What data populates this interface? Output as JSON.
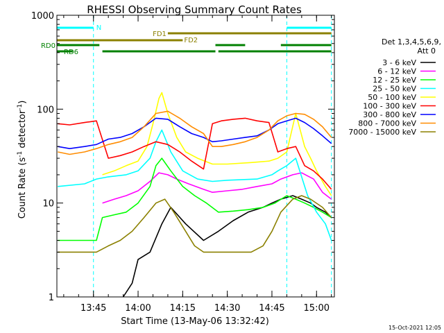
{
  "chart_data": {
    "type": "line",
    "title": "RHESSI Observing Summary Count Rates",
    "xlabel": "Start Time (13-May-06 13:32:42)",
    "ylabel_main": "Count Rate (s",
    "ylabel_sup1": "-1",
    "ylabel_mid": " detector",
    "ylabel_sup2": "-1",
    "ylabel_end": ")",
    "y_scale": "log",
    "xlim": [
      "13:32:42",
      "15:06:00"
    ],
    "ylim": [
      1,
      1000
    ],
    "x_ticks": [
      {
        "label": "13:45",
        "t": "13:45"
      },
      {
        "label": "14:00",
        "t": "14:00"
      },
      {
        "label": "14:15",
        "t": "14:15"
      },
      {
        "label": "14:30",
        "t": "14:30"
      },
      {
        "label": "14:45",
        "t": "14:45"
      },
      {
        "label": "15:00",
        "t": "15:00"
      }
    ],
    "y_ticks": [
      {
        "label": "1",
        "value": 1
      },
      {
        "label": "10",
        "value": 10
      },
      {
        "label": "100",
        "value": 100
      },
      {
        "label": "1000",
        "value": 1000
      }
    ],
    "legend": {
      "position": "right",
      "header1": "Det 1,3,4,5,6,9,",
      "header2": "Att 0"
    },
    "series": [
      {
        "name": "3 - 6 keV",
        "color": "#000000",
        "x": [
          "13:33",
          "13:45",
          "13:55",
          "13:58",
          "14:00",
          "14:04",
          "14:08",
          "14:11",
          "14:16",
          "14:22",
          "14:27",
          "14:32",
          "14:37",
          "14:42",
          "14:45",
          "14:48",
          "14:52",
          "14:55",
          "14:58",
          "15:00",
          "15:03",
          "15:05"
        ],
        "values": [
          null,
          null,
          1,
          1.4,
          2.5,
          3,
          6,
          9,
          6,
          4,
          5,
          6.5,
          8,
          9,
          10,
          11,
          12,
          11,
          10,
          9,
          8,
          7
        ]
      },
      {
        "name": "6 - 12 keV",
        "color": "#ff00ff",
        "x": [
          "13:33",
          "13:42",
          "13:48",
          "13:52",
          "13:56",
          "14:00",
          "14:04",
          "14:07",
          "14:10",
          "14:13",
          "14:17",
          "14:22",
          "14:25",
          "14:30",
          "14:35",
          "14:40",
          "14:45",
          "14:48",
          "14:52",
          "14:55",
          "14:59",
          "15:02",
          "15:05"
        ],
        "values": [
          null,
          null,
          10,
          11,
          12,
          13.5,
          17,
          21,
          20,
          18,
          16,
          14,
          13,
          13.5,
          14,
          15,
          16,
          18,
          20,
          21,
          18,
          13,
          11
        ]
      },
      {
        "name": "12 - 25 keV",
        "color": "#00ff00",
        "x": [
          "13:33",
          "13:37",
          "13:42",
          "13:46",
          "13:48",
          "13:52",
          "13:56",
          "14:00",
          "14:04",
          "14:06",
          "14:08",
          "14:11",
          "14:15",
          "14:19",
          "14:23",
          "14:27",
          "14:32",
          "14:37",
          "14:42",
          "14:46",
          "14:50",
          "14:53",
          "14:56",
          "14:59",
          "15:02",
          "15:05"
        ],
        "values": [
          4,
          4,
          4,
          4,
          7,
          7.5,
          8,
          10,
          15,
          25,
          30,
          22,
          15,
          12,
          10,
          8,
          8.2,
          8.5,
          9,
          10,
          12,
          11,
          10,
          9,
          8,
          7
        ]
      },
      {
        "name": "25 - 50 keV",
        "color": "#00ffff",
        "x": [
          "13:33",
          "13:42",
          "13:46",
          "13:50",
          "13:56",
          "14:00",
          "14:04",
          "14:06",
          "14:08",
          "14:11",
          "14:15",
          "14:20",
          "14:25",
          "14:30",
          "14:40",
          "14:45",
          "14:47",
          "14:50",
          "14:53",
          "14:57",
          "15:00",
          "15:03",
          "15:05"
        ],
        "values": [
          15,
          16,
          18,
          19,
          20,
          22,
          30,
          45,
          60,
          35,
          22,
          18,
          17,
          17.5,
          18,
          20,
          22,
          25,
          30,
          12,
          8,
          6,
          4
        ]
      },
      {
        "name": "50 - 100 keV",
        "color": "#ffff00",
        "x": [
          "13:33",
          "13:42",
          "13:48",
          "13:52",
          "13:56",
          "14:00",
          "14:03",
          "14:05",
          "14:07",
          "14:08",
          "14:10",
          "14:13",
          "14:16",
          "14:20",
          "14:25",
          "14:30",
          "14:38",
          "14:44",
          "14:47",
          "14:50",
          "14:53",
          "14:56",
          "14:58",
          "15:00",
          "15:03",
          "15:05"
        ],
        "values": [
          null,
          null,
          20,
          22,
          25,
          28,
          40,
          70,
          130,
          150,
          90,
          50,
          35,
          30,
          26,
          26,
          27,
          28,
          30,
          35,
          90,
          40,
          30,
          22,
          15,
          12
        ]
      },
      {
        "name": "100 - 300 keV",
        "color": "#ff0000",
        "x": [
          "13:33",
          "13:37",
          "13:42",
          "13:46",
          "13:50",
          "13:54",
          "13:58",
          "14:02",
          "14:06",
          "14:10",
          "14:14",
          "14:18",
          "14:22",
          "14:25",
          "14:28",
          "14:32",
          "14:36",
          "14:40",
          "14:44",
          "14:47",
          "14:50",
          "14:53",
          "14:56",
          "14:59",
          "15:02",
          "15:05"
        ],
        "values": [
          70,
          68,
          72,
          75,
          30,
          32,
          35,
          40,
          45,
          42,
          35,
          28,
          23,
          70,
          75,
          78,
          80,
          75,
          72,
          35,
          38,
          40,
          25,
          22,
          18,
          14
        ]
      },
      {
        "name": "300 - 800 keV",
        "color": "#0000ff",
        "x": [
          "13:33",
          "13:37",
          "13:42",
          "13:46",
          "13:50",
          "13:54",
          "13:58",
          "14:02",
          "14:06",
          "14:10",
          "14:14",
          "14:18",
          "14:22",
          "14:25",
          "14:28",
          "14:32",
          "14:36",
          "14:40",
          "14:44",
          "14:47",
          "14:50",
          "14:53",
          "14:56",
          "14:59",
          "15:02",
          "15:05"
        ],
        "values": [
          40,
          38,
          40,
          42,
          48,
          50,
          55,
          65,
          80,
          78,
          65,
          55,
          50,
          45,
          46,
          48,
          50,
          52,
          60,
          70,
          75,
          80,
          72,
          62,
          52,
          43
        ]
      },
      {
        "name": "800 - 7000 keV",
        "color": "#ff8c00",
        "x": [
          "13:33",
          "13:37",
          "13:42",
          "13:46",
          "13:50",
          "13:54",
          "13:58",
          "14:02",
          "14:06",
          "14:10",
          "14:14",
          "14:18",
          "14:22",
          "14:25",
          "14:28",
          "14:32",
          "14:36",
          "14:40",
          "14:44",
          "14:47",
          "14:50",
          "14:53",
          "14:56",
          "14:59",
          "15:02",
          "15:05"
        ],
        "values": [
          35,
          33,
          35,
          38,
          42,
          45,
          50,
          65,
          90,
          95,
          80,
          65,
          55,
          40,
          40,
          42,
          45,
          50,
          60,
          75,
          85,
          90,
          88,
          78,
          65,
          50
        ]
      },
      {
        "name": "7000 - 15000 keV",
        "color": "#8b8000",
        "x": [
          "13:33",
          "13:38",
          "13:43",
          "13:46",
          "13:50",
          "13:54",
          "13:58",
          "14:02",
          "14:06",
          "14:09",
          "14:12",
          "14:16",
          "14:19",
          "14:22",
          "14:25",
          "14:30",
          "14:34",
          "14:38",
          "14:42",
          "14:45",
          "14:48",
          "14:52",
          "14:55",
          "14:58",
          "15:02",
          "15:05"
        ],
        "values": [
          3,
          3,
          3,
          3,
          3.5,
          4,
          5,
          7,
          10,
          11,
          8,
          5,
          3.5,
          3,
          3,
          3,
          3,
          3,
          3.5,
          5,
          8,
          11,
          12,
          11,
          9,
          7
        ]
      }
    ],
    "annotations": {
      "night_label": "N",
      "fd1_label": "FD1",
      "fd2_label": "FD2",
      "rd0_label": "RD0",
      "rd6_label": "RD6",
      "night_color": "#00ffff",
      "flare_color": "#8b8000",
      "rd_color": "#008000",
      "night_boundaries": [
        "13:45",
        "14:50",
        "15:05"
      ],
      "night_bars": [
        [
          "13:32:42",
          "13:45"
        ],
        [
          "14:50",
          "15:05"
        ]
      ],
      "fd1_bar": [
        "14:10",
        "15:05"
      ],
      "fd2_bar": [
        "13:32:42",
        "14:15"
      ],
      "rd0_bars": [
        [
          "13:32:42",
          "13:47"
        ],
        [
          "14:26",
          "14:36"
        ],
        [
          "14:48",
          "15:05"
        ]
      ],
      "rd6_bars": [
        [
          "13:32:42",
          "13:38"
        ],
        [
          "13:48",
          "14:26"
        ],
        [
          "14:27",
          "15:05"
        ]
      ]
    }
  },
  "footer_timestamp": "15-Oct-2021 12:05"
}
